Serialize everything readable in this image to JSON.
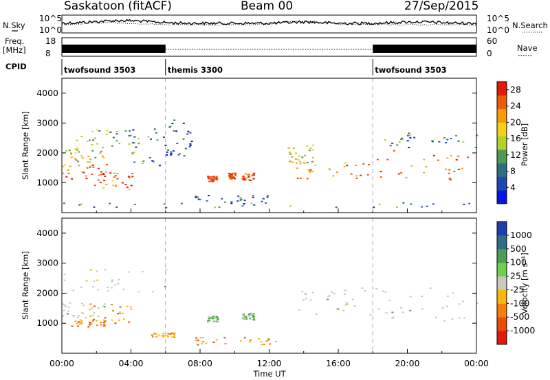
{
  "header": {
    "station": "Saskatoon",
    "algorithm": "(fitACF)",
    "beam": "Beam 00",
    "date": "27/Sep/2015"
  },
  "params": {
    "nsky_label": "N.Sky",
    "nsearch_label": "N.Search",
    "noise_ticks": [
      "10^5",
      "10^0"
    ],
    "noise_ticks_right": [
      "10^5",
      "10^0"
    ],
    "freq_label": "Freq.",
    "freq_unit": "[MHz]",
    "freq_ticks": [
      "18",
      "8"
    ],
    "nave_label": "Nave",
    "nave_ticks": [
      "60",
      "0"
    ],
    "cpid_label": "CPID",
    "cpid_segments": [
      {
        "label": "twofsound 3503",
        "start_hr": 0,
        "end_hr": 6
      },
      {
        "label": "themis 3300",
        "start_hr": 6,
        "end_hr": 18
      },
      {
        "label": "twofsound 3503",
        "start_hr": 18,
        "end_hr": 24
      }
    ]
  },
  "chart_data": [
    {
      "type": "heatmap",
      "title": "",
      "ylabel": "Slant Range [km]",
      "yticks": [
        "1000",
        "2000",
        "3000",
        "4000"
      ],
      "ylim": [
        0,
        4500
      ],
      "xlim": [
        0,
        24
      ],
      "colorbar": {
        "label": "Power [dB]",
        "ticks": [
          "4",
          "8",
          "12",
          "16",
          "20",
          "24",
          "28"
        ],
        "range": [
          0,
          30
        ],
        "colors": [
          "#0a14e6",
          "#1e46b4",
          "#2f6e82",
          "#4f9a54",
          "#b2cf2c",
          "#f7cf17",
          "#f79c0a",
          "#ee5a08",
          "#e01b0b"
        ]
      },
      "scatter_regions": [
        {
          "t0": 0.0,
          "t1": 3.1,
          "r0": 1150,
          "r1": 1650,
          "level": 0.8
        },
        {
          "t0": 0.0,
          "t1": 2.6,
          "r0": 1700,
          "r1": 2200,
          "level": 0.55
        },
        {
          "t0": 0.0,
          "t1": 4.0,
          "r0": 2250,
          "r1": 2800,
          "level": 0.45
        },
        {
          "t0": 1.8,
          "t1": 4.1,
          "r0": 800,
          "r1": 1400,
          "level": 0.85
        },
        {
          "t0": 4.0,
          "t1": 6.2,
          "r0": 1600,
          "r1": 2900,
          "level": 0.3
        },
        {
          "t0": 6.0,
          "t1": 7.5,
          "r0": 1900,
          "r1": 3200,
          "level": 0.2
        },
        {
          "t0": 7.5,
          "t1": 12.0,
          "r0": 300,
          "r1": 600,
          "level": 0.2
        },
        {
          "t0": 8.4,
          "t1": 9.0,
          "r0": 1050,
          "r1": 1250,
          "level": 0.9
        },
        {
          "t0": 9.6,
          "t1": 10.0,
          "r0": 1150,
          "r1": 1350,
          "level": 0.85
        },
        {
          "t0": 10.4,
          "t1": 11.1,
          "r0": 1100,
          "r1": 1350,
          "level": 0.9
        },
        {
          "t0": 13.5,
          "t1": 18.0,
          "r0": 1150,
          "r1": 1700,
          "level": 0.75
        },
        {
          "t0": 13.0,
          "t1": 14.5,
          "r0": 1600,
          "r1": 2300,
          "level": 0.55
        },
        {
          "t0": 18.0,
          "t1": 24.0,
          "r0": 1100,
          "r1": 2100,
          "level": 0.75
        },
        {
          "t0": 18.0,
          "t1": 24.0,
          "r0": 2200,
          "r1": 2700,
          "level": 0.3
        },
        {
          "t0": 0.0,
          "t1": 24.0,
          "r0": 180,
          "r1": 350,
          "level": 0.35
        }
      ]
    },
    {
      "type": "heatmap",
      "title": "",
      "ylabel": "Slant Range [km]",
      "yticks": [
        "1000",
        "2000",
        "3000",
        "4000"
      ],
      "ylim": [
        0,
        4500
      ],
      "xlim": [
        0,
        24
      ],
      "xticks": [
        "00:00",
        "04:00",
        "08:00",
        "12:00",
        "16:00",
        "20:00",
        "00:00"
      ],
      "xlabel": "Time UT",
      "colorbar": {
        "label": "Velocity [m s⁻¹]",
        "ticks": [
          "1000",
          "500",
          "100",
          "25",
          "-25",
          "-100",
          "-500",
          "-1000"
        ],
        "colors": [
          "#1f3fb0",
          "#2f6e82",
          "#4f9a54",
          "#6fd04e",
          "#c8c8c0",
          "#f7b80e",
          "#f47f0a",
          "#e84c0a",
          "#e01b0b"
        ]
      },
      "scatter_regions": [
        {
          "t0": 0.0,
          "t1": 2.5,
          "r0": 1200,
          "r1": 1700,
          "kind": "grey"
        },
        {
          "t0": 1.5,
          "t1": 4.0,
          "r0": 900,
          "r1": 1700,
          "kind": "orange"
        },
        {
          "t0": 0.5,
          "t1": 2.5,
          "r0": 900,
          "r1": 1150,
          "kind": "orange"
        },
        {
          "t0": 0.0,
          "t1": 6.0,
          "r0": 2000,
          "r1": 2900,
          "kind": "grey"
        },
        {
          "t0": 13.5,
          "t1": 18.0,
          "r0": 1300,
          "r1": 2200,
          "kind": "grey"
        },
        {
          "t0": 18.0,
          "t1": 24.0,
          "r0": 1100,
          "r1": 2200,
          "kind": "grey"
        },
        {
          "t0": 8.4,
          "t1": 9.0,
          "r0": 1050,
          "r1": 1250,
          "kind": "green"
        },
        {
          "t0": 10.4,
          "t1": 11.1,
          "r0": 1100,
          "r1": 1350,
          "kind": "green"
        },
        {
          "t0": 7.5,
          "t1": 12.5,
          "r0": 300,
          "r1": 550,
          "kind": "orange"
        },
        {
          "t0": 5.0,
          "t1": 6.5,
          "r0": 550,
          "r1": 700,
          "kind": "orange"
        }
      ]
    }
  ]
}
